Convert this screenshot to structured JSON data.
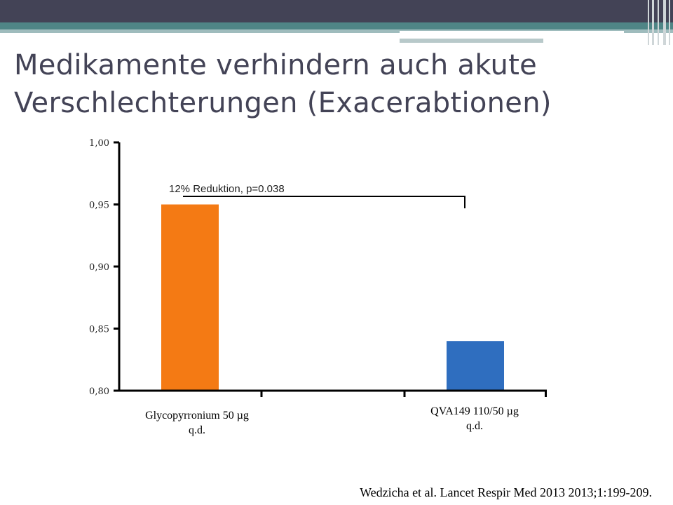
{
  "slide": {
    "title_line1": "Medikamente verhindern auch akute",
    "title_line2": "Verschlechterungen (Exacerabtionen)",
    "citation": "Wedzicha et al. Lancet Respir Med 2013 2013;1:199‑209."
  },
  "colors": {
    "header": "#434356",
    "accent": "#4f8586",
    "title": "#434356"
  },
  "chart_data": {
    "type": "bar",
    "categories": [
      [
        "Glycopyrronium 50 µg",
        "q.d."
      ],
      [
        "QVA149 110/50 µg",
        "q.d."
      ]
    ],
    "values": [
      0.95,
      0.84
    ],
    "colors": [
      "#f47a14",
      "#2f6ebf"
    ],
    "ylim": [
      0.8,
      1.0
    ],
    "yticks": [
      0.8,
      0.85,
      0.9,
      0.95,
      1.0
    ],
    "ytick_labels": [
      "0,80",
      "0,85",
      "0,90",
      "0,95",
      "1,00"
    ],
    "annotation": "12% Reduktion, p=0.038",
    "grid": false,
    "legend": "none"
  }
}
